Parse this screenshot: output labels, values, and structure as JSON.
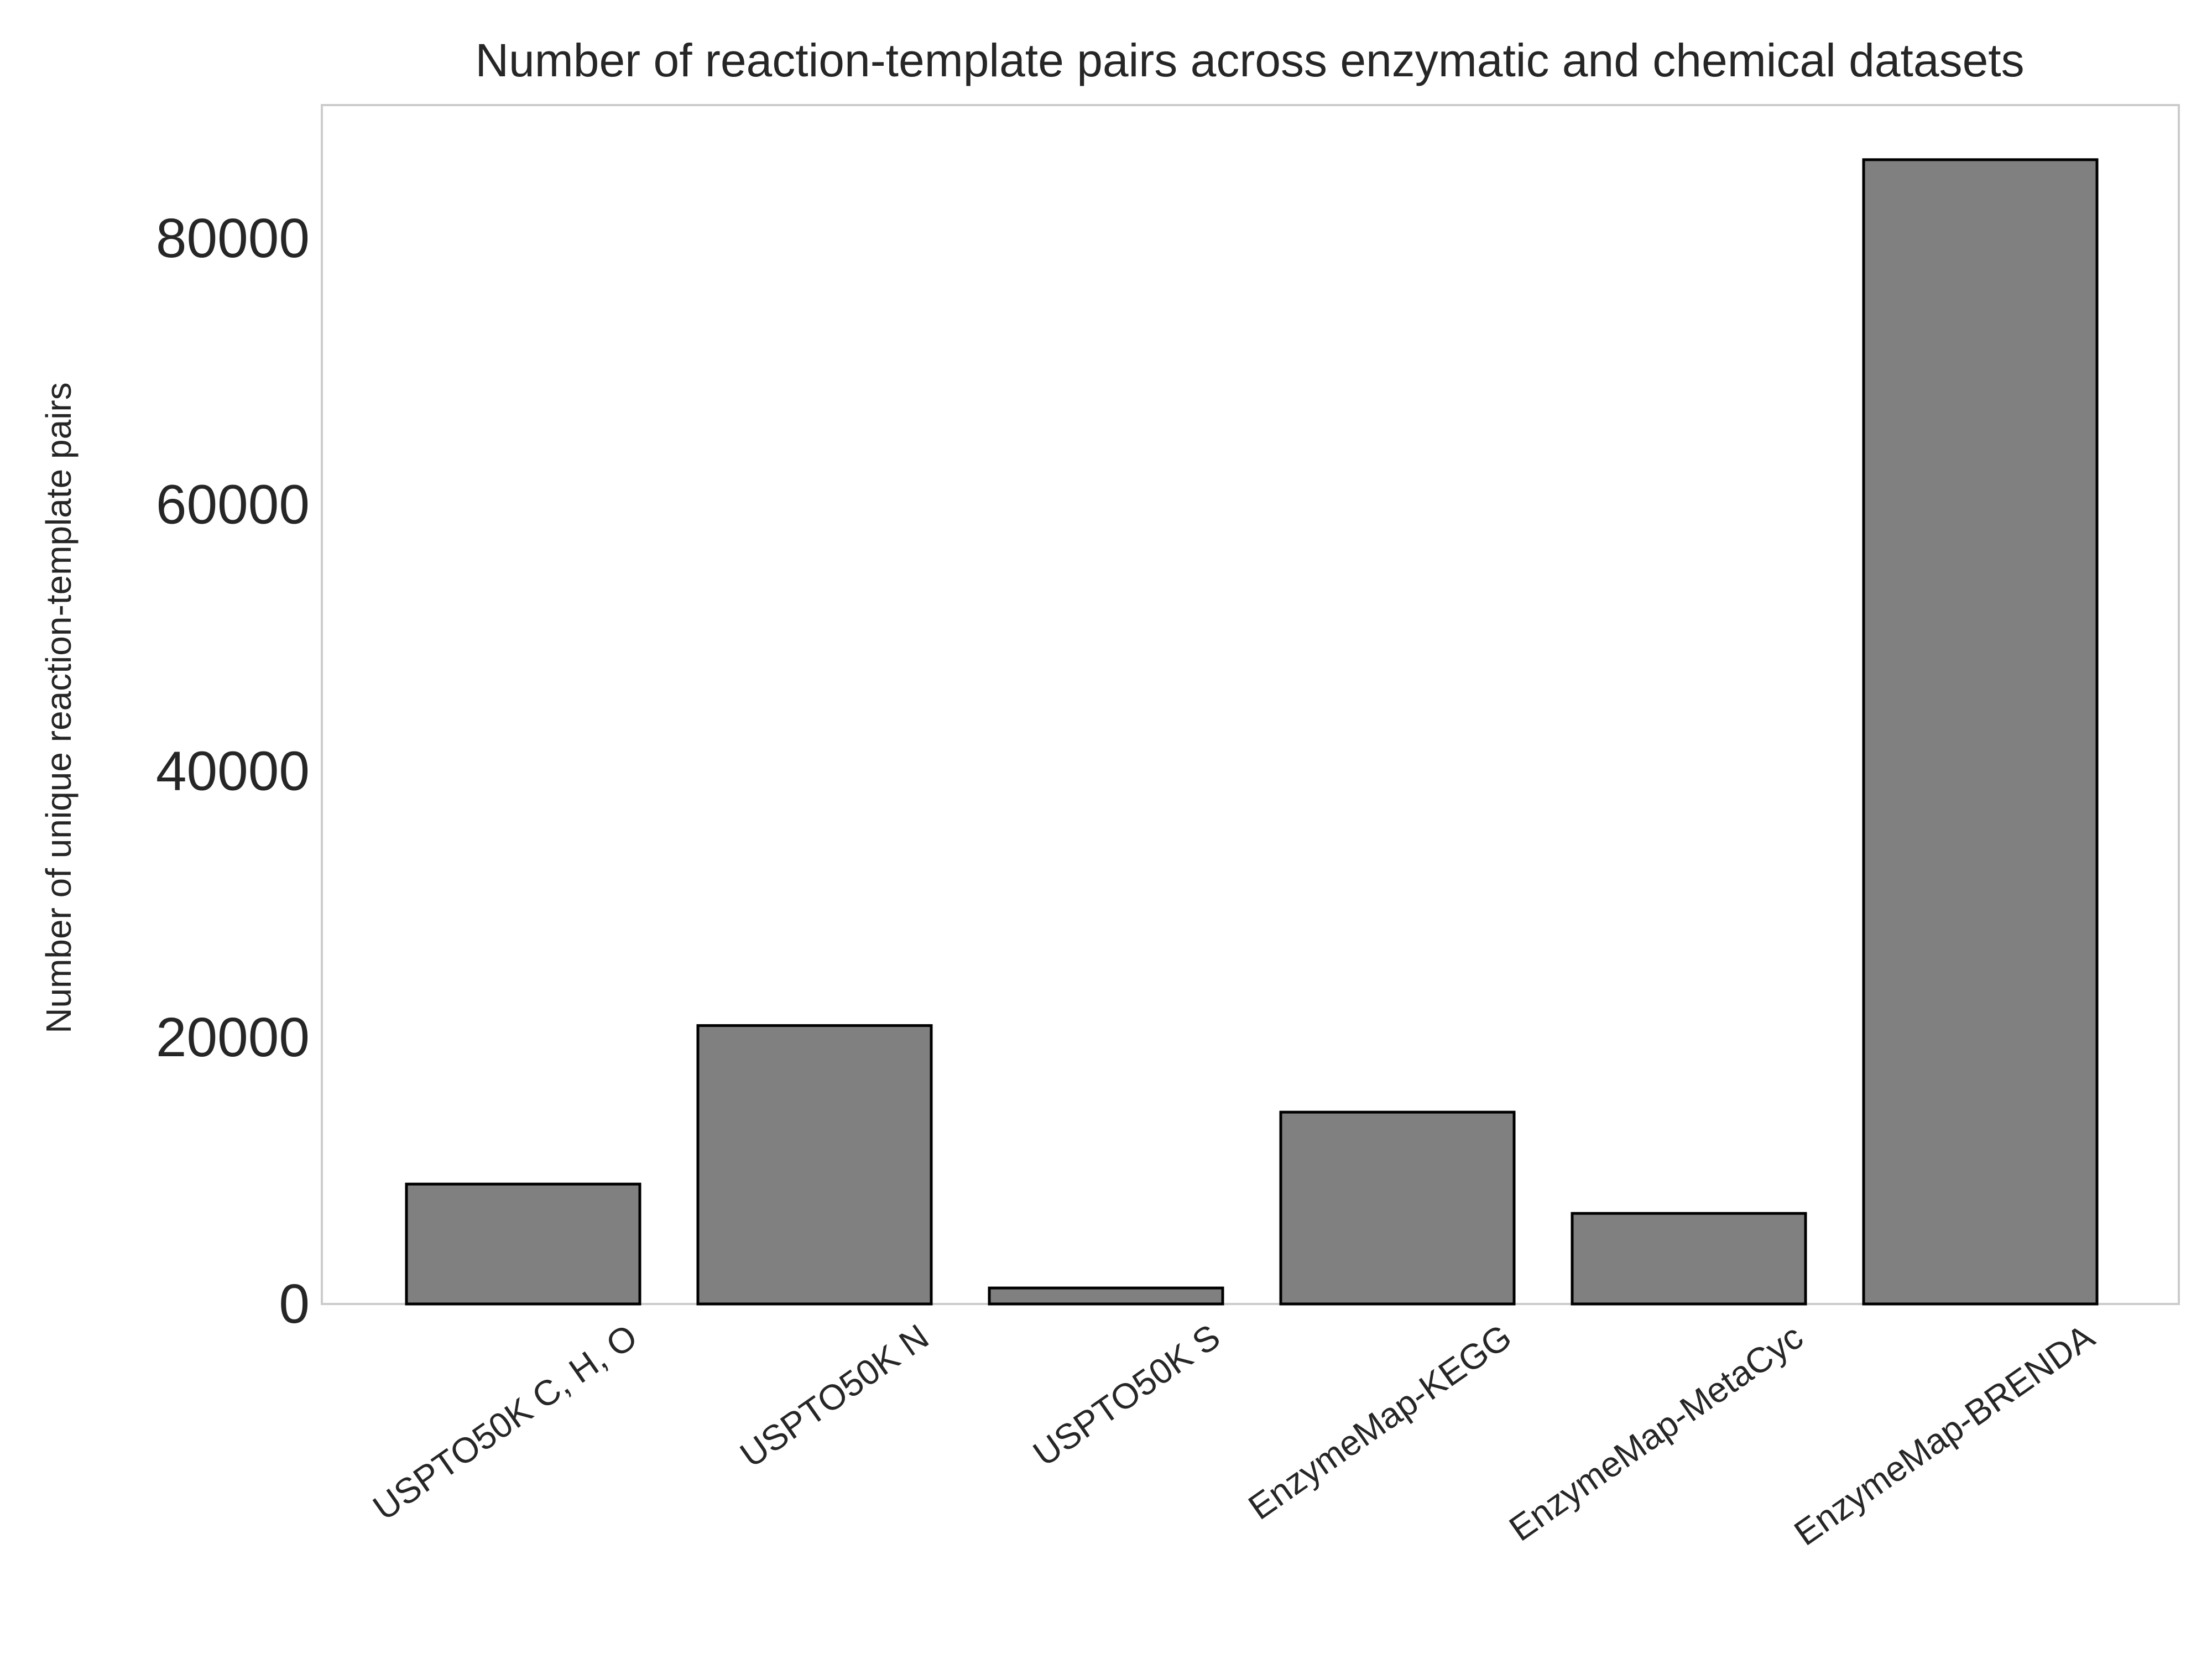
{
  "chart_data": {
    "type": "bar",
    "title": "Number of reaction-template pairs across enzymatic and chemical datasets",
    "xlabel": "",
    "ylabel": "Number of unique reaction-template pairs",
    "categories": [
      "USPTO50K C, H, O",
      "USPTO50K N",
      "USPTO50K S",
      "EnzymeMap-KEGG",
      "EnzymeMap-MetaCyc",
      "EnzymeMap-BRENDA"
    ],
    "values": [
      9000,
      20900,
      1200,
      14400,
      6800,
      85900
    ],
    "ylim": [
      0,
      90000
    ],
    "yticks": [
      "0",
      "20000",
      "40000",
      "60000",
      "80000"
    ],
    "grid": false,
    "colors": {
      "bar_fill": "#808080",
      "bar_edge": "#000000",
      "frame": "#cccccc"
    }
  }
}
